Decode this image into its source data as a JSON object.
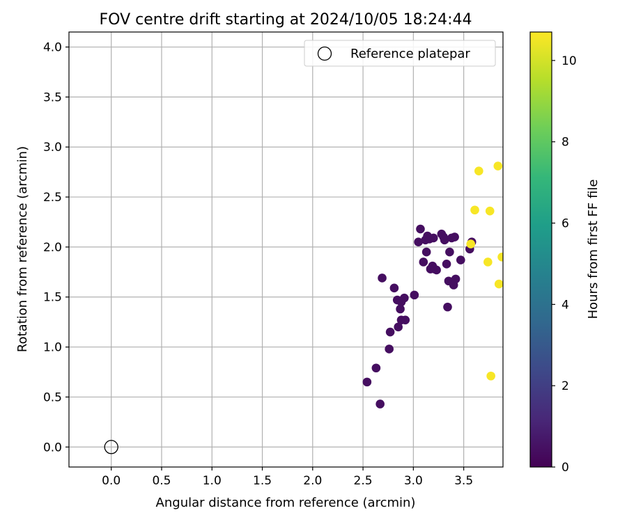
{
  "chart_data": {
    "type": "scatter",
    "title": "FOV centre drift starting at 2024/10/05 18:24:44",
    "xlabel": "Angular distance from reference (arcmin)",
    "ylabel": "Rotation from reference (arcmin)",
    "xlim": [
      -0.42,
      3.89
    ],
    "ylim": [
      -0.2,
      4.15
    ],
    "xticks": [
      0.0,
      0.5,
      1.0,
      1.5,
      2.0,
      2.5,
      3.0,
      3.5
    ],
    "xtick_labels": [
      "0.0",
      "0.5",
      "1.0",
      "1.5",
      "2.0",
      "2.5",
      "3.0",
      "3.5"
    ],
    "yticks": [
      0.0,
      0.5,
      1.0,
      1.5,
      2.0,
      2.5,
      3.0,
      3.5,
      4.0
    ],
    "ytick_labels": [
      "0.0",
      "0.5",
      "1.0",
      "1.5",
      "2.0",
      "2.5",
      "3.0",
      "3.5",
      "4.0"
    ],
    "grid": true,
    "legend_position": "top-right",
    "legend": [
      {
        "label": "Reference platepar",
        "marker": "open-circle"
      }
    ],
    "colorbar": {
      "label": "Hours from first FF file",
      "colormap": "viridis",
      "range": [
        0,
        10.7
      ],
      "ticks": [
        0,
        2,
        4,
        6,
        8,
        10
      ],
      "tick_labels": [
        "0",
        "2",
        "4",
        "6",
        "8",
        "10"
      ],
      "colors": [
        "#440154",
        "#482878",
        "#3e4989",
        "#31688e",
        "#26828e",
        "#1f9e89",
        "#35b779",
        "#6ece58",
        "#b5de2b",
        "#fde725"
      ]
    },
    "reference_point": {
      "x": 0.0,
      "y": 0.0
    },
    "series": [
      {
        "hours": 0.4,
        "points": [
          [
            2.54,
            0.65
          ],
          [
            2.63,
            0.79
          ],
          [
            2.67,
            0.43
          ],
          [
            2.69,
            1.69
          ],
          [
            2.76,
            0.98
          ],
          [
            2.77,
            1.15
          ],
          [
            2.81,
            1.59
          ],
          [
            2.84,
            1.47
          ],
          [
            2.85,
            1.2
          ],
          [
            2.87,
            1.38
          ],
          [
            2.88,
            1.45
          ],
          [
            2.88,
            1.27
          ],
          [
            2.91,
            1.49
          ],
          [
            2.92,
            1.27
          ],
          [
            3.01,
            1.52
          ],
          [
            3.05,
            2.05
          ],
          [
            3.07,
            2.18
          ],
          [
            3.1,
            1.85
          ],
          [
            3.12,
            2.07
          ],
          [
            3.13,
            1.95
          ],
          [
            3.14,
            2.11
          ],
          [
            3.16,
            2.08
          ],
          [
            3.17,
            1.78
          ],
          [
            3.19,
            1.81
          ],
          [
            3.2,
            2.09
          ],
          [
            3.21,
            1.78
          ],
          [
            3.23,
            1.77
          ],
          [
            3.28,
            2.13
          ],
          [
            3.3,
            2.1
          ],
          [
            3.31,
            2.07
          ],
          [
            3.33,
            1.83
          ],
          [
            3.34,
            1.4
          ],
          [
            3.35,
            1.66
          ],
          [
            3.36,
            1.95
          ],
          [
            3.38,
            2.09
          ],
          [
            3.4,
            1.62
          ],
          [
            3.41,
            2.1
          ],
          [
            3.42,
            1.68
          ],
          [
            3.47,
            1.87
          ],
          [
            3.56,
            1.98
          ],
          [
            3.58,
            2.05
          ]
        ]
      },
      {
        "hours": 10.6,
        "points": [
          [
            3.57,
            2.03
          ],
          [
            3.61,
            2.37
          ],
          [
            3.65,
            2.76
          ],
          [
            3.74,
            1.85
          ],
          [
            3.76,
            2.36
          ],
          [
            3.77,
            0.71
          ],
          [
            3.84,
            2.81
          ],
          [
            3.85,
            1.63
          ],
          [
            3.88,
            1.9
          ]
        ]
      }
    ]
  }
}
